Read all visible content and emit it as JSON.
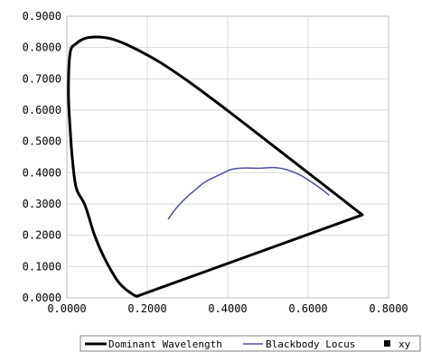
{
  "chart_data": {
    "type": "line",
    "title": "",
    "xlabel": "",
    "ylabel": "",
    "xlim": [
      0,
      0.8
    ],
    "ylim": [
      0,
      0.9
    ],
    "grid": true,
    "legend_position": "bottom-right",
    "x_ticks": [
      {
        "value": 0.0,
        "label": "0.0000"
      },
      {
        "value": 0.2,
        "label": "0.2000"
      },
      {
        "value": 0.4,
        "label": "0.4000"
      },
      {
        "value": 0.6,
        "label": "0.6000"
      },
      {
        "value": 0.8,
        "label": "0.8000"
      }
    ],
    "y_ticks": [
      {
        "value": 0.0,
        "label": "0.0000"
      },
      {
        "value": 0.1,
        "label": "0.1000"
      },
      {
        "value": 0.2,
        "label": "0.2000"
      },
      {
        "value": 0.3,
        "label": "0.3000"
      },
      {
        "value": 0.4,
        "label": "0.4000"
      },
      {
        "value": 0.5,
        "label": "0.5000"
      },
      {
        "value": 0.6,
        "label": "0.6000"
      },
      {
        "value": 0.7,
        "label": "0.7000"
      },
      {
        "value": 0.8,
        "label": "0.8000"
      },
      {
        "value": 0.9,
        "label": "0.9000"
      }
    ],
    "series": [
      {
        "name": "Dominant Wavelength",
        "color": "#000000",
        "style": "line-thick",
        "points": [
          [
            0.7347,
            0.2653
          ],
          [
            0.6915,
            0.3083
          ],
          [
            0.6482,
            0.3515
          ],
          [
            0.6067,
            0.393
          ],
          [
            0.5125,
            0.4866
          ],
          [
            0.4441,
            0.5547
          ],
          [
            0.3731,
            0.6245
          ],
          [
            0.3016,
            0.6923
          ],
          [
            0.2296,
            0.7543
          ],
          [
            0.1547,
            0.8059
          ],
          [
            0.1096,
            0.8282
          ],
          [
            0.0743,
            0.8338
          ],
          [
            0.0454,
            0.8295
          ],
          [
            0.0235,
            0.8127
          ],
          [
            0.0082,
            0.7834
          ],
          [
            0.0039,
            0.6548
          ],
          [
            0.0082,
            0.5384
          ],
          [
            0.0139,
            0.4412
          ],
          [
            0.0235,
            0.3503
          ],
          [
            0.0454,
            0.295
          ],
          [
            0.0687,
            0.2007
          ],
          [
            0.0913,
            0.1327
          ],
          [
            0.1241,
            0.0578
          ],
          [
            0.144,
            0.0297
          ],
          [
            0.1566,
            0.0177
          ],
          [
            0.1666,
            0.0089
          ],
          [
            0.1738,
            0.0049
          ],
          [
            0.7347,
            0.2653
          ]
        ]
      },
      {
        "name": "Blackbody Locus",
        "color": "#4a52a0",
        "style": "line-thin",
        "points": [
          [
            0.2525,
            0.2523
          ],
          [
            0.2653,
            0.2758
          ],
          [
            0.2807,
            0.2993
          ],
          [
            0.2986,
            0.3223
          ],
          [
            0.3227,
            0.3489
          ],
          [
            0.3451,
            0.3713
          ],
          [
            0.3805,
            0.3939
          ],
          [
            0.4101,
            0.4107
          ],
          [
            0.4385,
            0.4148
          ],
          [
            0.4782,
            0.4143
          ],
          [
            0.5133,
            0.4164
          ],
          [
            0.5445,
            0.4104
          ],
          [
            0.5812,
            0.3917
          ],
          [
            0.6208,
            0.3591
          ],
          [
            0.6514,
            0.329
          ]
        ]
      },
      {
        "name": "xy",
        "color": "#000000",
        "style": "marker-square",
        "points": []
      }
    ]
  }
}
